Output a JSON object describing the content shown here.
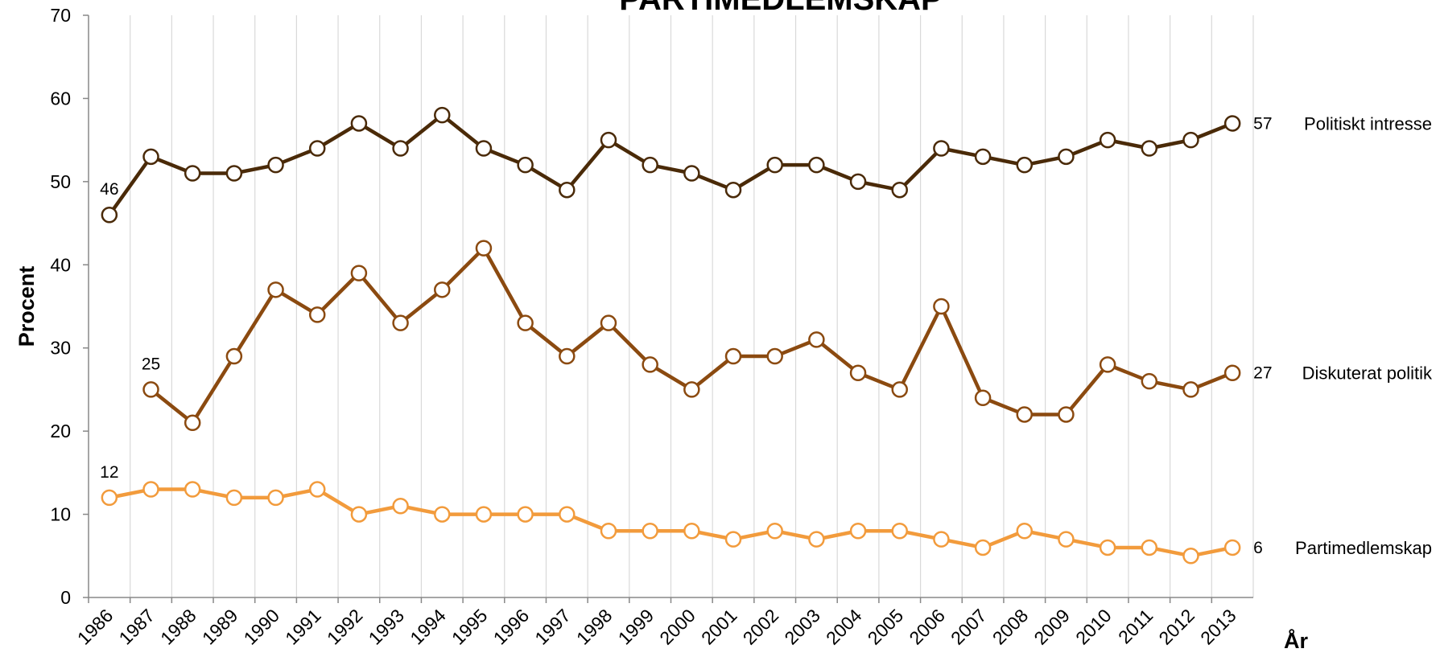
{
  "chart_data": {
    "type": "line",
    "title": "PARTIMEDLEMSKAP",
    "y_label": "Procent",
    "x_label": "År",
    "categories": [
      "1986",
      "1987",
      "1988",
      "1989",
      "1990",
      "1991",
      "1992",
      "1993",
      "1994",
      "1995",
      "1996",
      "1997",
      "1998",
      "1999",
      "2000",
      "2001",
      "2002",
      "2003",
      "2004",
      "2005",
      "2006",
      "2007",
      "2008",
      "2009",
      "2010",
      "2011",
      "2012",
      "2013"
    ],
    "ylim": [
      0,
      70
    ],
    "yticks": [
      0,
      10,
      20,
      30,
      40,
      50,
      60,
      70
    ],
    "grid": "vertical",
    "series": [
      {
        "name": "Politiskt intresse",
        "color": "#4a2a08",
        "values": [
          46,
          53,
          51,
          51,
          52,
          54,
          57,
          54,
          58,
          54,
          52,
          49,
          55,
          52,
          51,
          49,
          52,
          52,
          50,
          49,
          54,
          53,
          52,
          53,
          55,
          54,
          55,
          57
        ]
      },
      {
        "name": "Diskuterat politik",
        "color": "#8b4a10",
        "values": [
          null,
          25,
          21,
          29,
          37,
          34,
          39,
          33,
          37,
          42,
          33,
          29,
          33,
          28,
          25,
          29,
          29,
          31,
          27,
          25,
          35,
          24,
          22,
          22,
          28,
          26,
          25,
          27
        ]
      },
      {
        "name": "Partimedlemskap",
        "color": "#f29b3c",
        "values": [
          12,
          13,
          13,
          12,
          12,
          13,
          10,
          11,
          10,
          10,
          10,
          10,
          8,
          8,
          8,
          7,
          8,
          7,
          8,
          8,
          7,
          6,
          8,
          7,
          6,
          6,
          5,
          6
        ]
      }
    ]
  }
}
